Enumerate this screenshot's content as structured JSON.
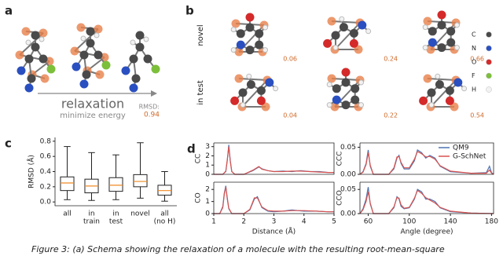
{
  "panel_a": {
    "label": "a",
    "caption": "relaxation",
    "subcaption": "minimize energy",
    "rmsd_label": "RMSD:",
    "rmsd_value": 0.94
  },
  "panel_b": {
    "label": "b",
    "rows": [
      "novel",
      "in test"
    ],
    "rmsd_values": [
      0.06,
      0.24,
      0.66,
      0.04,
      0.22,
      0.54
    ],
    "legend": [
      "C",
      "N",
      "O",
      "F",
      "H"
    ]
  },
  "chart_data": [
    {
      "type": "box",
      "panel_label": "c",
      "ylabel": "RMSD (Å)",
      "categories": [
        [
          "all"
        ],
        [
          "in",
          "train"
        ],
        [
          "in",
          "test"
        ],
        [
          "novel"
        ],
        [
          "all",
          "(no H)"
        ]
      ],
      "boxes": [
        [
          0.03,
          0.15,
          0.25,
          0.33,
          0.73
        ],
        [
          0.02,
          0.12,
          0.21,
          0.3,
          0.65
        ],
        [
          0.03,
          0.14,
          0.22,
          0.32,
          0.62
        ],
        [
          0.05,
          0.2,
          0.27,
          0.36,
          0.78
        ],
        [
          0.01,
          0.09,
          0.15,
          0.22,
          0.4
        ]
      ],
      "color": "#222222",
      "median_color": "#f08a24",
      "ylim": [
        -0.05,
        0.85
      ],
      "yticks": [
        {
          "value": 0,
          "label": "0.0"
        },
        0.2,
        0.4,
        0.6,
        0.8
      ]
    },
    {
      "type": "line",
      "panel_label": "d",
      "ylabel": "CC",
      "xlim": [
        1,
        5
      ],
      "ylim": [
        0,
        3.4
      ],
      "yticks": [
        0,
        1,
        2,
        3
      ],
      "x": [
        1,
        1.3,
        1.4,
        1.45,
        1.5,
        1.55,
        1.6,
        1.7,
        2.0,
        2.3,
        2.5,
        2.6,
        2.8,
        3.0,
        3.3,
        3.6,
        3.9,
        4.2,
        4.5,
        4.8,
        5
      ],
      "series": [
        {
          "color": "#4c72b0",
          "values": [
            0,
            0,
            0.3,
            1.5,
            3.2,
            1.5,
            0.3,
            0,
            0,
            0.4,
            0.8,
            0.6,
            0.4,
            0.3,
            0.35,
            0.3,
            0.4,
            0.3,
            0.3,
            0.2,
            0.2
          ]
        },
        {
          "color": "#d9534f",
          "values": [
            0,
            0,
            0.35,
            1.6,
            3.0,
            1.4,
            0.3,
            0,
            0,
            0.45,
            0.85,
            0.55,
            0.4,
            0.3,
            0.3,
            0.35,
            0.35,
            0.3,
            0.25,
            0.2,
            0.2
          ]
        }
      ]
    },
    {
      "type": "line",
      "ylabel": "CO",
      "xlim": [
        1,
        5
      ],
      "ylim": [
        0,
        2.6
      ],
      "yticks": [
        0,
        1,
        2
      ],
      "xticks": [
        1,
        2,
        3,
        4,
        5
      ],
      "xlabel": "Distance (Å)",
      "x": [
        1,
        1.2,
        1.3,
        1.35,
        1.4,
        1.45,
        1.5,
        1.6,
        2.0,
        2.2,
        2.35,
        2.45,
        2.6,
        2.8,
        3.0,
        3.3,
        3.6,
        4.0,
        4.4,
        4.8,
        5
      ],
      "series": [
        {
          "color": "#4c72b0",
          "values": [
            0,
            0,
            0.6,
            1.7,
            2.3,
            1.2,
            0.4,
            0,
            0,
            0.3,
            1.2,
            1.4,
            0.5,
            0.2,
            0.15,
            0.2,
            0.3,
            0.2,
            0.2,
            0.15,
            0.15
          ]
        },
        {
          "color": "#d9534f",
          "values": [
            0,
            0,
            0.5,
            1.6,
            2.2,
            1.3,
            0.45,
            0,
            0,
            0.35,
            1.3,
            1.3,
            0.55,
            0.25,
            0.2,
            0.2,
            0.25,
            0.25,
            0.2,
            0.15,
            0.15
          ]
        }
      ]
    },
    {
      "type": "line",
      "ylabel": "CCC",
      "xlim": [
        52,
        182
      ],
      "ylim": [
        0,
        0.058
      ],
      "yticks": [
        {
          "value": 0,
          "label": "0.00"
        },
        0.05
      ],
      "x": [
        52,
        55,
        58,
        60,
        62,
        65,
        80,
        85,
        88,
        90,
        92,
        95,
        100,
        105,
        108,
        112,
        116,
        120,
        125,
        130,
        140,
        160,
        175,
        178,
        180,
        182
      ],
      "series": [
        {
          "name": "QM9",
          "color": "#4c72b0",
          "values": [
            0,
            0.005,
            0.02,
            0.045,
            0.015,
            0,
            0,
            0.01,
            0.03,
            0.035,
            0.02,
            0.01,
            0.01,
            0.025,
            0.045,
            0.04,
            0.03,
            0.035,
            0.03,
            0.015,
            0.005,
            0.002,
            0.003,
            0.015,
            0.003,
            0
          ]
        },
        {
          "name": "G-SchNet",
          "color": "#d9534f",
          "values": [
            0,
            0.004,
            0.018,
            0.04,
            0.017,
            0,
            0,
            0.012,
            0.032,
            0.033,
            0.022,
            0.012,
            0.012,
            0.028,
            0.042,
            0.038,
            0.032,
            0.033,
            0.028,
            0.016,
            0.006,
            0.002,
            0.002,
            0.008,
            0.002,
            0
          ]
        }
      ]
    },
    {
      "type": "line",
      "ylabel": "CCO",
      "xlim": [
        52,
        182
      ],
      "ylim": [
        0,
        0.065
      ],
      "yticks": [
        {
          "value": 0,
          "label": "0.00"
        },
        0.05
      ],
      "xticks": [
        60,
        100,
        140,
        180
      ],
      "xlabel": "Angle (degree)",
      "x": [
        52,
        55,
        58,
        60,
        62,
        65,
        80,
        85,
        88,
        90,
        92,
        95,
        100,
        105,
        108,
        112,
        116,
        120,
        125,
        130,
        140,
        160,
        182
      ],
      "series": [
        {
          "color": "#4c72b0",
          "values": [
            0,
            0.01,
            0.03,
            0.055,
            0.02,
            0,
            0,
            0.012,
            0.035,
            0.03,
            0.015,
            0.01,
            0.012,
            0.03,
            0.05,
            0.045,
            0.03,
            0.03,
            0.025,
            0.012,
            0.004,
            0.001,
            0
          ]
        },
        {
          "color": "#d9534f",
          "values": [
            0,
            0.008,
            0.025,
            0.045,
            0.022,
            0,
            0,
            0.014,
            0.033,
            0.032,
            0.018,
            0.011,
            0.013,
            0.032,
            0.048,
            0.042,
            0.033,
            0.028,
            0.022,
            0.013,
            0.005,
            0.001,
            0
          ]
        }
      ]
    }
  ]
}
